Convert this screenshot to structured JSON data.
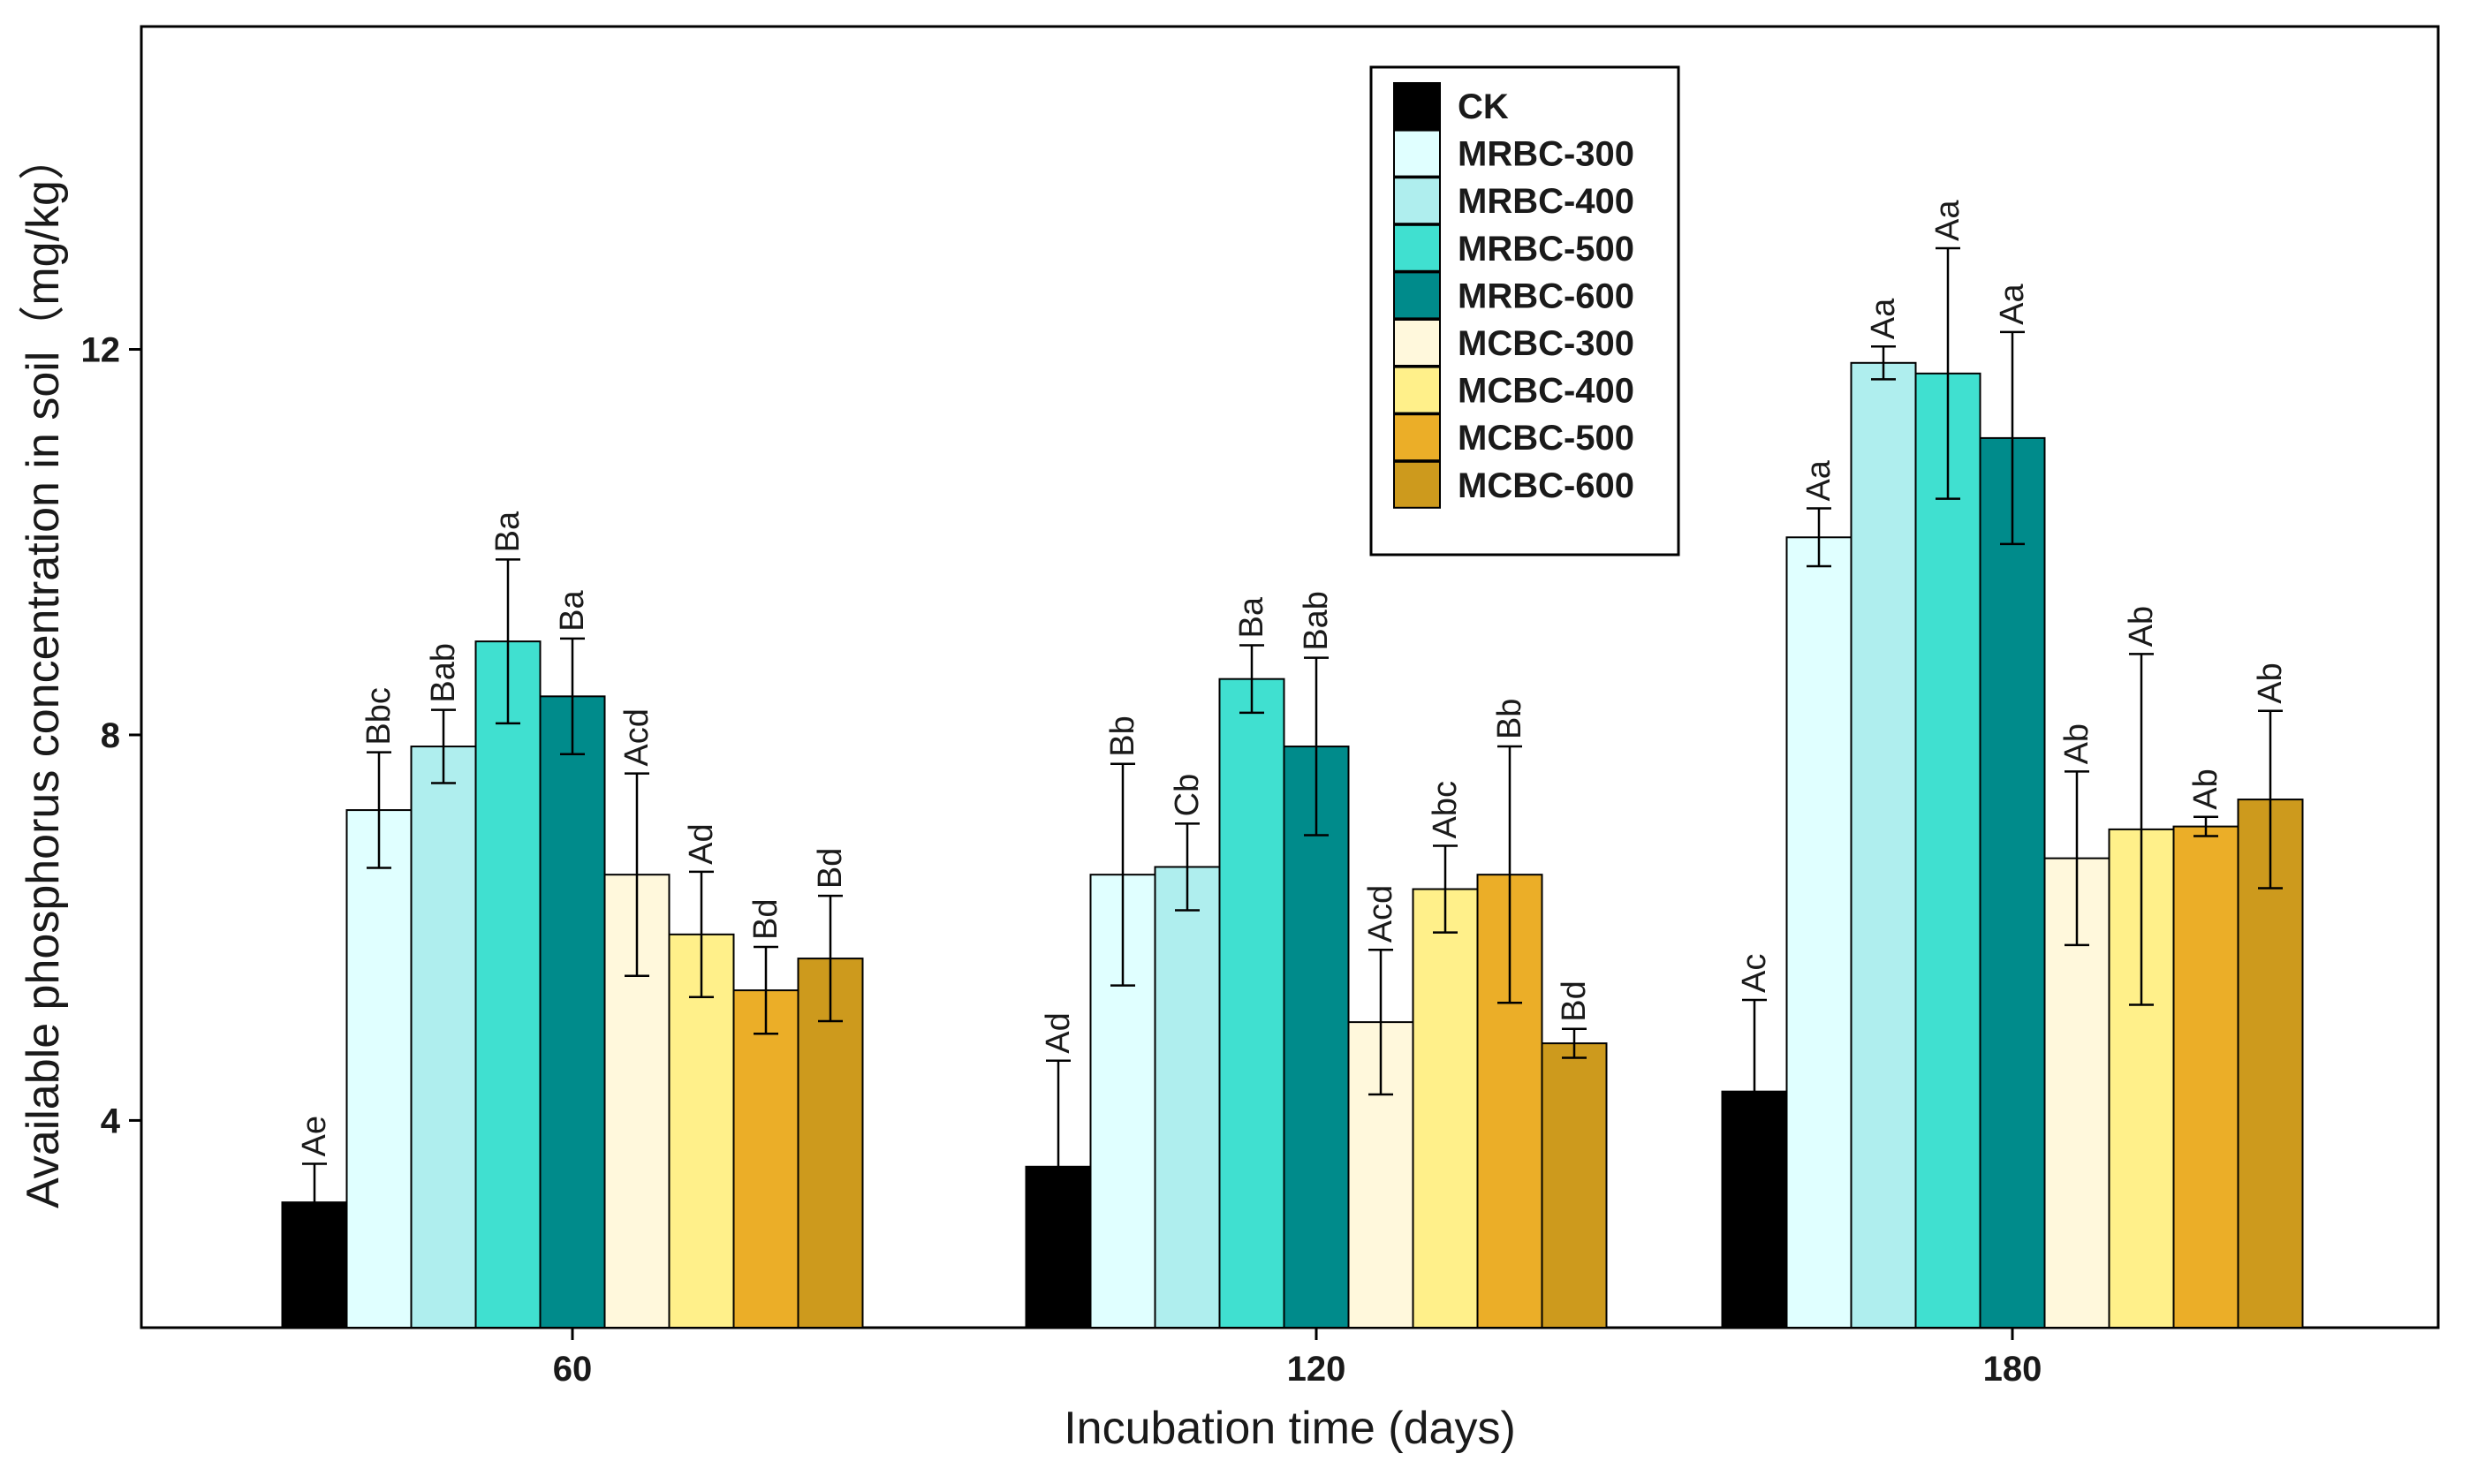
{
  "chart_data": {
    "type": "bar",
    "title": "",
    "xlabel": "Incubation time (days)",
    "ylabel": "Available phosphorus concentration in soil（mg/kg）",
    "ylim": [
      1.85,
      15.35
    ],
    "yticks": [
      4,
      8,
      12
    ],
    "categories": [
      "60",
      "120",
      "180"
    ],
    "legend_position": "top-center",
    "series": [
      {
        "name": "CK",
        "color": "#000000",
        "values": [
          3.15,
          3.52,
          4.3
        ],
        "errors": [
          0.4,
          1.1,
          0.95
        ],
        "labels": [
          "Ae",
          "Ad",
          "Ac"
        ]
      },
      {
        "name": "MRBC-300",
        "color": "#E0FFFF",
        "values": [
          7.22,
          6.55,
          10.05
        ],
        "errors": [
          0.6,
          1.15,
          0.3
        ],
        "labels": [
          "Bbc",
          "Bb",
          "Aa"
        ]
      },
      {
        "name": "MRBC-400",
        "color": "#AFEEEE",
        "values": [
          7.88,
          6.63,
          11.86
        ],
        "errors": [
          0.38,
          0.45,
          0.17
        ],
        "labels": [
          "Bab",
          "Cb",
          "Aa"
        ]
      },
      {
        "name": "MRBC-500",
        "color": "#40E0D0",
        "values": [
          8.97,
          8.58,
          11.75
        ],
        "errors": [
          0.85,
          0.35,
          1.3
        ],
        "labels": [
          "Ba",
          "Ba",
          "Aa"
        ]
      },
      {
        "name": "MRBC-600",
        "color": "#008B8B",
        "values": [
          8.4,
          7.88,
          11.08
        ],
        "errors": [
          0.6,
          0.92,
          1.1
        ],
        "labels": [
          "Ba",
          "Bab",
          "Aa"
        ]
      },
      {
        "name": "MCBC-300",
        "color": "#FFF8DC",
        "values": [
          6.55,
          5.02,
          6.72
        ],
        "errors": [
          1.05,
          0.75,
          0.9
        ],
        "labels": [
          "Acd",
          "Acd",
          "Ab"
        ]
      },
      {
        "name": "MCBC-400",
        "color": "#FFF08A",
        "values": [
          5.93,
          6.4,
          7.02
        ],
        "errors": [
          0.65,
          0.45,
          1.82
        ],
        "labels": [
          "Ad",
          "Abc",
          "Ab"
        ]
      },
      {
        "name": "MCBC-500",
        "color": "#EBAE28",
        "values": [
          5.35,
          6.55,
          7.05
        ],
        "errors": [
          0.45,
          1.33,
          0.1
        ],
        "labels": [
          "Bd",
          "Bb",
          "Ab"
        ]
      },
      {
        "name": "MCBC-600",
        "color": "#CD9A1D",
        "values": [
          5.68,
          4.8,
          7.33
        ],
        "errors": [
          0.65,
          0.15,
          0.92
        ],
        "labels": [
          "Bd",
          "Bd",
          "Ab"
        ]
      }
    ]
  }
}
